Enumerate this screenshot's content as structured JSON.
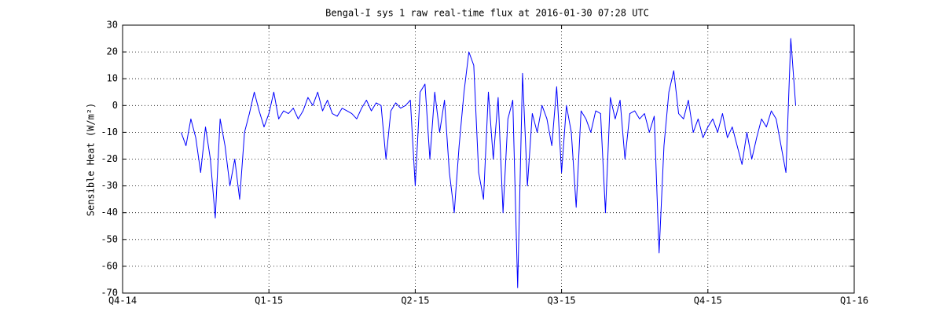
{
  "chart_data": {
    "type": "line",
    "title": "Bengal-I sys 1 raw real-time flux at 2016-01-30 07:28 UTC",
    "ylabel": "Sensible Heat (W/m²)",
    "categories": [
      "Q4-14",
      null,
      null,
      null,
      null,
      null,
      null,
      null,
      null,
      null,
      null,
      null,
      null,
      null,
      null,
      null,
      null,
      null,
      null,
      null,
      null,
      null,
      null,
      null,
      null,
      null,
      null,
      null,
      null,
      null,
      "Q1-15",
      null,
      null,
      null,
      null,
      null,
      null,
      null,
      null,
      null,
      null,
      null,
      null,
      null,
      null,
      null,
      null,
      null,
      null,
      null,
      null,
      null,
      null,
      null,
      null,
      null,
      null,
      null,
      null,
      null,
      "Q2-15",
      null,
      null,
      null,
      null,
      null,
      null,
      null,
      null,
      null,
      null,
      null,
      null,
      null,
      null,
      null,
      null,
      null,
      null,
      null,
      null,
      null,
      null,
      null,
      null,
      null,
      null,
      null,
      null,
      null,
      "Q3-15",
      null,
      null,
      null,
      null,
      null,
      null,
      null,
      null,
      null,
      null,
      null,
      null,
      null,
      null,
      null,
      null,
      null,
      null,
      null,
      null,
      null,
      null,
      null,
      null,
      null,
      null,
      null,
      null,
      null,
      "Q4-15",
      null,
      null,
      null,
      null,
      null,
      null,
      null,
      null,
      null,
      null,
      null,
      null,
      null,
      null,
      null,
      null,
      null,
      null,
      null,
      null,
      null,
      null,
      null,
      null,
      null,
      null,
      null,
      null,
      null,
      "Q1-16"
    ],
    "values": [
      null,
      null,
      null,
      null,
      null,
      null,
      null,
      null,
      null,
      null,
      null,
      null,
      -10,
      -15,
      -5,
      -12,
      -25,
      -8,
      -20,
      -42,
      -5,
      -15,
      -30,
      -20,
      -35,
      -10,
      -3,
      5,
      -2,
      -8,
      -3,
      5,
      -5,
      -2,
      -3,
      -1,
      -5,
      -2,
      3,
      0,
      5,
      -2,
      2,
      -3,
      -4,
      -1,
      -2,
      -3,
      -5,
      -1,
      2,
      -2,
      1,
      0,
      -20,
      -2,
      1,
      -1,
      0,
      2,
      -30,
      5,
      8,
      -20,
      5,
      -10,
      2,
      -25,
      -40,
      -15,
      5,
      20,
      15,
      -25,
      -35,
      5,
      -20,
      3,
      -40,
      -5,
      2,
      -68,
      12,
      -30,
      -3,
      -10,
      0,
      -5,
      -15,
      7,
      -25,
      0,
      -10,
      -38,
      -2,
      -5,
      -10,
      -2,
      -3,
      -40,
      3,
      -5,
      2,
      -20,
      -3,
      -2,
      -5,
      -3,
      -10,
      -4,
      -55,
      -15,
      5,
      13,
      -3,
      -5,
      2,
      -10,
      -5,
      -12,
      -8,
      -5,
      -10,
      -3,
      -12,
      -8,
      -15,
      -22,
      -10,
      -20,
      -12,
      -5,
      -8,
      -2,
      -5,
      -15,
      -25,
      25,
      0,
      null,
      null,
      null,
      null,
      null,
      null,
      null,
      null,
      null,
      null,
      null,
      null
    ],
    "color": "#0000ff",
    "ylim": [
      -70,
      30
    ],
    "yticks": [
      -70,
      -60,
      -50,
      -40,
      -30,
      -20,
      -10,
      0,
      10,
      20,
      30
    ],
    "grid": true
  }
}
